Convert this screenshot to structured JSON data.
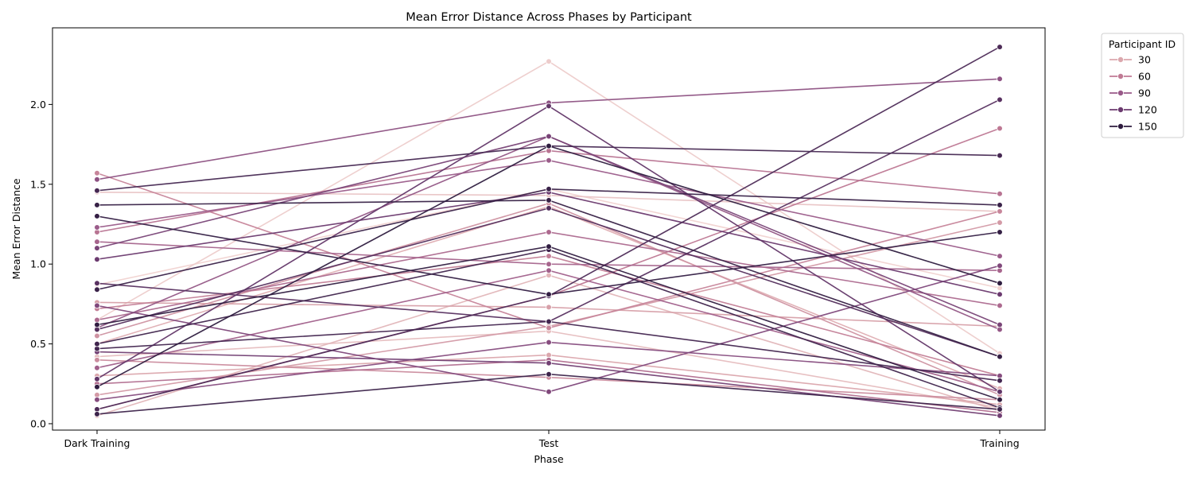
{
  "chart_data": {
    "type": "line",
    "title": "Mean Error Distance Across Phases by Participant",
    "xlabel": "Phase",
    "ylabel": "Mean Error Distance",
    "categories": [
      "Dark Training",
      "Test",
      "Training"
    ],
    "ylim": [
      -0.04,
      2.48
    ],
    "yticks": [
      "0.0",
      "0.5",
      "1.0",
      "1.5",
      "2.0"
    ],
    "grid": false,
    "legend": {
      "title": "Participant ID",
      "placement": "outside right, top",
      "entries": [
        {
          "label": "30",
          "color": "#dba7ad"
        },
        {
          "label": "60",
          "color": "#c07a94"
        },
        {
          "label": "90",
          "color": "#995a89"
        },
        {
          "label": "120",
          "color": "#6b3a6f"
        },
        {
          "label": "150",
          "color": "#2e1c3f"
        }
      ]
    },
    "colorscale": [
      "#f3d8d5",
      "#dba7ad",
      "#c07a94",
      "#995a89",
      "#6b3a6f",
      "#2e1c3f"
    ],
    "series": [
      {
        "hue": 0.02,
        "values": [
          0.87,
          1.47,
          0.85
        ]
      },
      {
        "hue": 0.05,
        "values": [
          0.65,
          2.27,
          0.44
        ]
      },
      {
        "hue": 0.08,
        "values": [
          1.45,
          1.43,
          1.33
        ]
      },
      {
        "hue": 0.11,
        "values": [
          0.42,
          0.58,
          0.1
        ]
      },
      {
        "hue": 0.14,
        "values": [
          0.05,
          0.93,
          0.08
        ]
      },
      {
        "hue": 0.17,
        "values": [
          0.5,
          1.36,
          0.22
        ]
      },
      {
        "hue": 0.2,
        "values": [
          0.3,
          0.43,
          0.12
        ]
      },
      {
        "hue": 0.23,
        "values": [
          0.76,
          0.73,
          0.61
        ]
      },
      {
        "hue": 0.26,
        "values": [
          0.18,
          0.61,
          1.26
        ]
      },
      {
        "hue": 0.29,
        "values": [
          0.55,
          1.38,
          0.18
        ]
      },
      {
        "hue": 0.32,
        "values": [
          0.4,
          0.29,
          0.15
        ]
      },
      {
        "hue": 0.35,
        "values": [
          1.57,
          0.6,
          1.33
        ]
      },
      {
        "hue": 0.38,
        "values": [
          0.72,
          1.05,
          0.3
        ]
      },
      {
        "hue": 0.41,
        "values": [
          0.09,
          0.8,
          1.85
        ]
      },
      {
        "hue": 0.44,
        "values": [
          1.2,
          1.71,
          1.44
        ]
      },
      {
        "hue": 0.47,
        "values": [
          0.25,
          0.4,
          0.07
        ]
      },
      {
        "hue": 0.5,
        "values": [
          0.65,
          1.2,
          0.74
        ]
      },
      {
        "hue": 0.53,
        "values": [
          1.14,
          1.0,
          0.96
        ]
      },
      {
        "hue": 0.56,
        "values": [
          0.35,
          0.96,
          0.2
        ]
      },
      {
        "hue": 0.59,
        "values": [
          1.23,
          1.65,
          1.05
        ]
      },
      {
        "hue": 0.62,
        "values": [
          0.6,
          1.8,
          0.59
        ]
      },
      {
        "hue": 0.65,
        "values": [
          1.53,
          2.01,
          2.16
        ]
      },
      {
        "hue": 0.68,
        "values": [
          0.15,
          0.51,
          0.3
        ]
      },
      {
        "hue": 0.71,
        "values": [
          0.74,
          0.2,
          0.99
        ]
      },
      {
        "hue": 0.74,
        "values": [
          1.1,
          1.8,
          0.62
        ]
      },
      {
        "hue": 0.77,
        "values": [
          0.45,
          0.38,
          0.05
        ]
      },
      {
        "hue": 0.8,
        "values": [
          1.03,
          1.45,
          0.81
        ]
      },
      {
        "hue": 0.83,
        "values": [
          0.28,
          1.99,
          0.2
        ]
      },
      {
        "hue": 0.86,
        "values": [
          0.88,
          0.64,
          2.03
        ]
      },
      {
        "hue": 0.88,
        "values": [
          0.59,
          1.35,
          0.42
        ]
      },
      {
        "hue": 0.9,
        "values": [
          0.09,
          0.8,
          2.36
        ]
      },
      {
        "hue": 0.92,
        "values": [
          1.46,
          1.74,
          1.68
        ]
      },
      {
        "hue": 0.94,
        "values": [
          0.5,
          1.09,
          0.1
        ]
      },
      {
        "hue": 0.96,
        "values": [
          0.84,
          1.47,
          1.37
        ]
      },
      {
        "hue": 0.98,
        "values": [
          1.3,
          0.81,
          1.2
        ]
      },
      {
        "hue": 1.0,
        "values": [
          0.23,
          1.74,
          0.88
        ]
      },
      {
        "hue": 0.99,
        "values": [
          0.62,
          1.11,
          0.15
        ]
      },
      {
        "hue": 0.97,
        "values": [
          1.37,
          1.4,
          0.42
        ]
      },
      {
        "hue": 0.95,
        "values": [
          0.06,
          0.31,
          0.09
        ]
      },
      {
        "hue": 0.93,
        "values": [
          0.47,
          0.64,
          0.27
        ]
      }
    ]
  }
}
